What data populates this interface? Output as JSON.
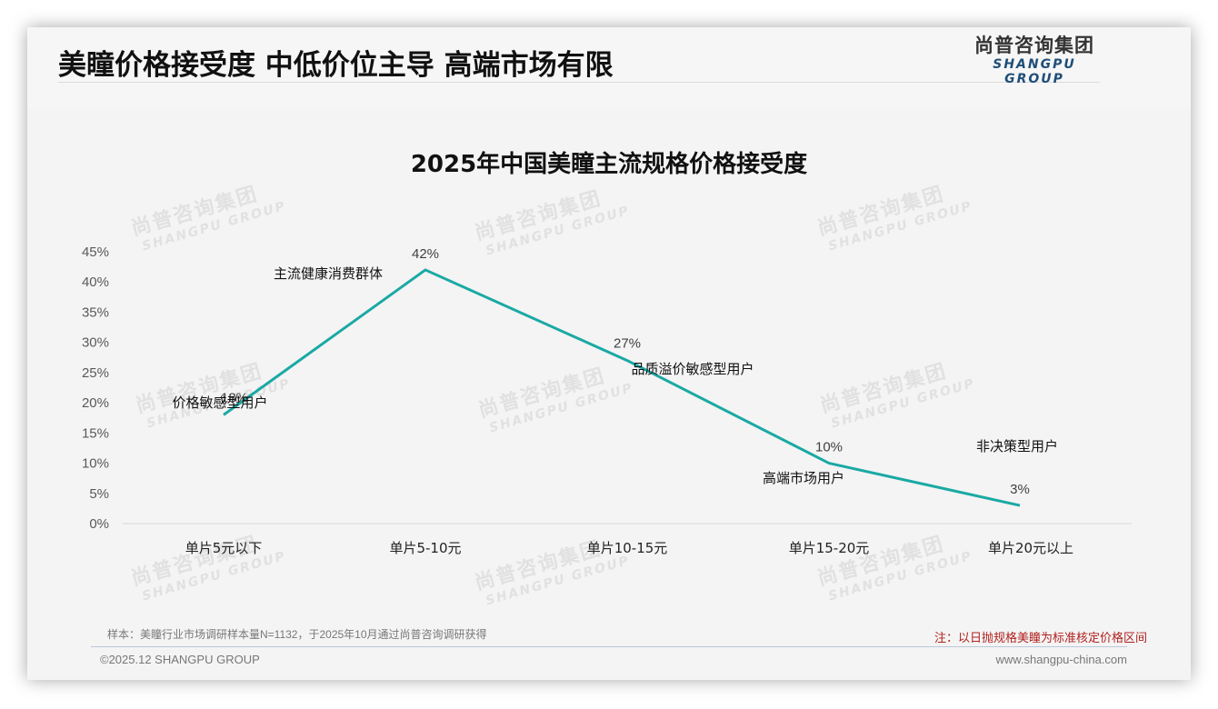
{
  "header": {
    "title": "美瞳价格接受度 中低价位主导 高端市场有限",
    "logo_cn": "尚普咨询集团",
    "logo_en": "SHANGPU GROUP"
  },
  "colors": {
    "line": "#1aa9a4",
    "note_text": "#b0201f",
    "logo_en": "#1f4e79",
    "background": "#f4f4f4"
  },
  "watermark": {
    "cn": "尚普咨询集团",
    "en": "SHANGPU GROUP"
  },
  "chart_data": {
    "type": "line",
    "title": "2025年中国美瞳主流规格价格接受度",
    "xlabel": "",
    "ylabel": "",
    "categories": [
      "单片5元以下",
      "单片5-10元",
      "单片10-15元",
      "单片15-20元",
      "单片20元以上"
    ],
    "series": [
      {
        "name": "价格接受度",
        "values": [
          18,
          42,
          27,
          10,
          3
        ],
        "value_labels": [
          "18%",
          "42%",
          "27%",
          "10%",
          "3%"
        ],
        "annotations": [
          "价格敏感型用户",
          "主流健康消费群体",
          "品质溢价敏感型用户",
          "高端市场用户",
          "非决策型用户"
        ]
      }
    ],
    "ylim": [
      0,
      45
    ],
    "yticks": [
      "0%",
      "5%",
      "10%",
      "15%",
      "20%",
      "25%",
      "30%",
      "35%",
      "40%",
      "45%"
    ],
    "grid": false,
    "legend": "none"
  },
  "footer": {
    "source": "样本：美瞳行业市场调研样本量N=1132，于2025年10月通过尚普咨询调研获得",
    "note": "注：以日抛规格美瞳为标准核定价格区间",
    "copyright": "©2025.12 SHANGPU GROUP",
    "website": "www.shangpu-china.com"
  }
}
